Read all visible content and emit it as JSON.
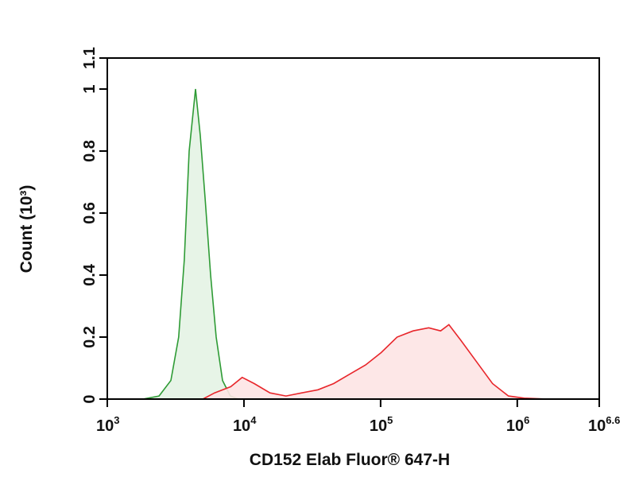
{
  "chart_data": {
    "type": "histogram-line",
    "x_label": "CD152 Elab Fluor® 647-H",
    "y_label": "Count (10³)",
    "xscale": "log",
    "xlim": [
      1000,
      3981072
    ],
    "xticks": [
      {
        "value": 1000,
        "label": "10",
        "exponent": "3"
      },
      {
        "value": 10000,
        "label": "10",
        "exponent": "4"
      },
      {
        "value": 100000,
        "label": "10",
        "exponent": "5"
      },
      {
        "value": 1000000,
        "label": "10",
        "exponent": "6"
      },
      {
        "value": 3981072,
        "label": "10",
        "exponent": "6.6"
      }
    ],
    "ylim": [
      0,
      1.1
    ],
    "yticks": [
      0,
      0.2,
      0.4,
      0.6,
      0.8,
      1,
      1.1
    ],
    "series": [
      {
        "color": "#2e9b35",
        "fill": "#e4f3e4",
        "x": [
          1820,
          2390,
          2920,
          3330,
          3660,
          3970,
          4420,
          4790,
          5190,
          5700,
          6260,
          6970,
          7960,
          9100
        ],
        "values": [
          0,
          0.01,
          0.06,
          0.2,
          0.45,
          0.8,
          1.0,
          0.85,
          0.65,
          0.4,
          0.2,
          0.06,
          0.01,
          0
        ]
      },
      {
        "color": "#e8262b",
        "fill": "#fde4e4",
        "x": [
          5000,
          6100,
          8000,
          9700,
          11900,
          15500,
          20300,
          26500,
          34800,
          45300,
          59200,
          77500,
          101000,
          132000,
          173000,
          225000,
          275000,
          316000,
          386000,
          504000,
          659000,
          861000,
          1125000,
          1680000
        ],
        "values": [
          0,
          0.02,
          0.04,
          0.07,
          0.05,
          0.02,
          0.01,
          0.02,
          0.03,
          0.05,
          0.08,
          0.11,
          0.15,
          0.2,
          0.22,
          0.23,
          0.22,
          0.24,
          0.19,
          0.12,
          0.05,
          0.01,
          0.003,
          0
        ]
      }
    ]
  }
}
